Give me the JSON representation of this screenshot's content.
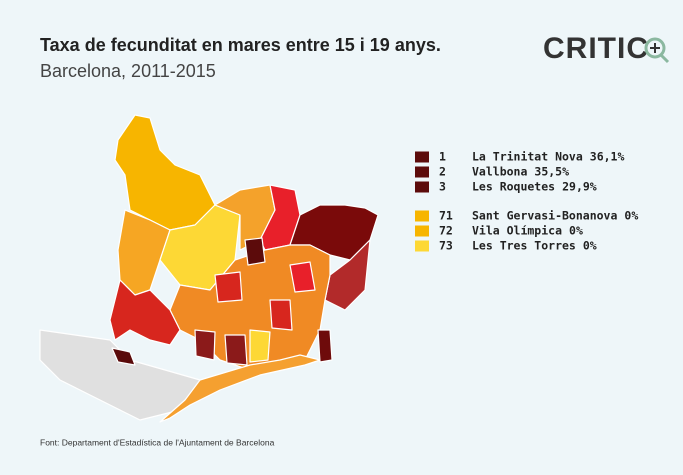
{
  "header": {
    "title": "Taxa de fecunditat en mares entre 15 i 19 anys.",
    "subtitle": "Barcelona, 2011-2015",
    "logo": "CRITIC"
  },
  "legend": {
    "groups": [
      [
        {
          "rank": 1,
          "name": "La Trinitat Nova",
          "value_label": "36,1%",
          "color": "#5c0b0b"
        },
        {
          "rank": 2,
          "name": "Vallbona",
          "value_label": "35,5%",
          "color": "#5c0b0b"
        },
        {
          "rank": 3,
          "name": "Les Roquetes",
          "value_label": "29,9%",
          "color": "#5c0b0b"
        }
      ],
      [
        {
          "rank": 71,
          "name": "Sant Gervasi-Bonanova",
          "value_label": "0%",
          "color": "#f7b500"
        },
        {
          "rank": 72,
          "name": "Vila Olímpica",
          "value_label": "0%",
          "color": "#f7b500"
        },
        {
          "rank": 73,
          "name": "Les Tres Torres",
          "value_label": "0%",
          "color": "#fdd835"
        }
      ]
    ]
  },
  "footer": {
    "source": "Font: Departament d'Estadística de l'Ajuntament de Barcelona"
  }
}
